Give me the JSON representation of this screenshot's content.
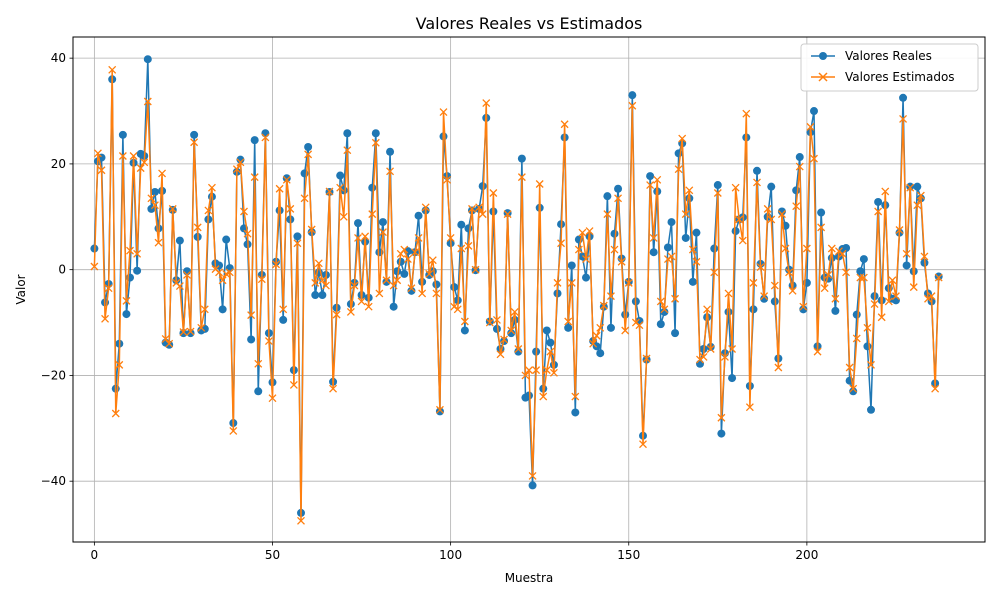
{
  "chart_data": {
    "type": "line",
    "title": "Valores Reales vs Estimados",
    "xlabel": "Muestra",
    "ylabel": "Valor",
    "xlim": [
      -6,
      250
    ],
    "ylim": [
      -51.5,
      44
    ],
    "xticks": [
      0,
      50,
      100,
      150,
      200
    ],
    "yticks": [
      -40,
      -20,
      0,
      20,
      40
    ],
    "grid": true,
    "legend_position": "top-right",
    "series": [
      {
        "name": "Valores Reales",
        "color": "#1f77b4",
        "marker": "circle",
        "values": [
          4.0,
          20.5,
          21.2,
          -6.2,
          -2.7,
          36.0,
          -22.5,
          -14.0,
          25.5,
          -8.4,
          -1.5,
          20.2,
          -0.2,
          21.9,
          21.5,
          39.8,
          11.5,
          14.7,
          7.8,
          14.9,
          -13.8,
          -14.2,
          11.3,
          -2.0,
          5.5,
          -12.0,
          -0.3,
          -12.0,
          25.5,
          6.2,
          -11.5,
          -11.2,
          9.5,
          13.8,
          1.2,
          0.8,
          -7.5,
          5.7,
          0.3,
          -29.0,
          18.5,
          20.8,
          7.8,
          4.8,
          -13.2,
          24.5,
          -23.0,
          -1.0,
          25.8,
          -12.0,
          -21.3,
          1.5,
          11.2,
          -9.5,
          17.3,
          9.5,
          -19.0,
          6.3,
          -46.0,
          18.2,
          23.2,
          7.1,
          -4.8,
          -0.5,
          -4.8,
          -1.0,
          14.7,
          -21.2,
          -7.2,
          17.8,
          15.0,
          25.8,
          -6.5,
          -2.5,
          8.8,
          -4.8,
          5.3,
          -5.3,
          15.5,
          25.8,
          3.3,
          9.0,
          -2.3,
          22.3,
          -7.0,
          -0.3,
          1.5,
          -0.8,
          3.5,
          -4.0,
          3.3,
          10.2,
          -2.3,
          11.2,
          -1.0,
          -0.3,
          -2.8,
          -26.8,
          25.2,
          17.7,
          5.0,
          -3.3,
          -5.8,
          8.5,
          -11.5,
          7.8,
          11.2,
          -0.1,
          11.5,
          15.8,
          28.7,
          -9.8,
          11.0,
          -11.2,
          -15.0,
          -13.5,
          10.7,
          -12.0,
          -9.5,
          -15.5,
          21.0,
          -24.2,
          -23.8,
          -40.8,
          -15.5,
          11.7,
          -22.5,
          -11.5,
          -13.8,
          -18.0,
          -4.5,
          8.6,
          25.0,
          -11.0,
          0.8,
          -27.0,
          5.7,
          2.5,
          -1.5,
          6.3,
          -13.5,
          -14.5,
          -15.8,
          -7.0,
          13.9,
          -11.0,
          6.8,
          15.3,
          2.1,
          -8.5,
          -2.3,
          33.0,
          -6.0,
          -9.7,
          -31.4,
          -17.0,
          17.7,
          3.3,
          14.8,
          -10.3,
          -8.0,
          4.2,
          9.0,
          -12.0,
          22.0,
          23.9,
          6.0,
          13.5,
          -2.3,
          7.0,
          -17.8,
          -15.0,
          -9.0,
          -14.6,
          4.0,
          16.0,
          -31.0,
          -15.8,
          -8.0,
          -20.5,
          7.3,
          9.5,
          9.9,
          25.0,
          -22.0,
          -7.5,
          18.7,
          1.1,
          -5.5,
          10.0,
          15.7,
          -6.0,
          -16.8,
          11.0,
          8.3,
          0.0,
          -3.0,
          15.0,
          21.3,
          -7.5,
          -2.5,
          26.0,
          30.0,
          -14.5,
          10.8,
          -1.5,
          -1.7,
          2.2,
          -7.8,
          2.5,
          3.9,
          4.1,
          -21.0,
          -23.0,
          -8.5,
          -0.3,
          2.0,
          -14.5,
          -26.5,
          -5.0,
          12.8,
          -5.8,
          12.2,
          -3.5,
          -5.5,
          -5.8,
          7.0,
          32.5,
          0.8,
          15.7,
          -0.3,
          15.7,
          13.5,
          1.3,
          -4.5,
          -6.0,
          -21.5,
          -1.3
        ]
      },
      {
        "name": "Valores Estimados",
        "color": "#ff7f0e",
        "marker": "x",
        "values": [
          0.6,
          22.0,
          18.8,
          -9.3,
          -3.5,
          37.8,
          -27.2,
          -18.0,
          21.5,
          -5.9,
          3.6,
          21.5,
          3.0,
          19.2,
          20.3,
          31.8,
          13.5,
          12.2,
          5.1,
          18.2,
          -13.1,
          -14.0,
          11.5,
          -2.5,
          -3.1,
          -11.8,
          -1.0,
          -11.7,
          24.1,
          8.0,
          -11.0,
          -7.5,
          11.2,
          15.5,
          0.1,
          -0.5,
          -2.0,
          -0.8,
          -0.5,
          -30.5,
          19.0,
          20.3,
          11.0,
          6.8,
          -8.6,
          17.5,
          -17.8,
          -1.8,
          25.0,
          -13.5,
          -24.3,
          1.0,
          15.3,
          -7.5,
          17.0,
          11.5,
          -21.8,
          5.0,
          -47.5,
          13.5,
          21.8,
          7.6,
          -2.5,
          1.2,
          -2.0,
          -3.0,
          14.8,
          -22.5,
          -8.5,
          15.5,
          10.0,
          22.6,
          -8.0,
          -3.0,
          6.0,
          -6.0,
          6.3,
          -7.0,
          10.5,
          24.0,
          -4.5,
          7.1,
          -2.0,
          18.6,
          -3.0,
          -2.0,
          3.0,
          3.8,
          2.0,
          -3.5,
          3.3,
          6.0,
          -4.5,
          11.8,
          -0.8,
          1.8,
          -4.5,
          -26.5,
          29.8,
          17.0,
          6.0,
          -7.0,
          -7.5,
          4.0,
          -9.8,
          4.5,
          11.5,
          0.0,
          11.8,
          10.5,
          31.5,
          -10.0,
          14.5,
          -9.5,
          -16.0,
          -13.2,
          10.5,
          -11.5,
          -8.0,
          -15.0,
          17.5,
          -20.0,
          -19.0,
          -39.0,
          -19.0,
          16.2,
          -24.0,
          -19.0,
          -15.5,
          -19.5,
          -2.5,
          5.0,
          27.5,
          -9.8,
          -2.5,
          -24.0,
          3.8,
          7.0,
          2.0,
          7.3,
          -14.0,
          -12.5,
          -11.0,
          -6.8,
          10.5,
          -5.0,
          3.8,
          13.5,
          1.5,
          -11.5,
          -2.5,
          31.0,
          -10.0,
          -10.5,
          -33.0,
          -16.8,
          16.0,
          6.0,
          17.0,
          -6.0,
          -7.5,
          2.0,
          2.5,
          -5.5,
          19.0,
          24.8,
          10.5,
          15.0,
          3.8,
          1.5,
          -17.0,
          -16.5,
          -7.5,
          -15.0,
          -0.5,
          14.5,
          -28.0,
          -16.5,
          -4.5,
          -15.0,
          15.5,
          9.5,
          5.5,
          29.5,
          -26.0,
          -2.5,
          16.5,
          0.5,
          -5.0,
          11.5,
          9.5,
          -3.0,
          -18.5,
          10.5,
          4.0,
          -0.5,
          -4.0,
          12.0,
          19.5,
          -7.0,
          4.0,
          27.0,
          21.0,
          -15.5,
          8.0,
          -3.5,
          -1.0,
          4.0,
          -5.5,
          3.5,
          3.0,
          -0.5,
          -18.5,
          -22.5,
          -13.0,
          -1.5,
          -1.5,
          -11.0,
          -18.0,
          -6.5,
          11.0,
          -9.0,
          14.8,
          -6.0,
          -2.0,
          -5.0,
          7.5,
          28.5,
          3.0,
          15.5,
          -3.3,
          12.2,
          14.0,
          2.5,
          -5.5,
          -5.0,
          -22.5,
          -1.5
        ]
      }
    ]
  }
}
